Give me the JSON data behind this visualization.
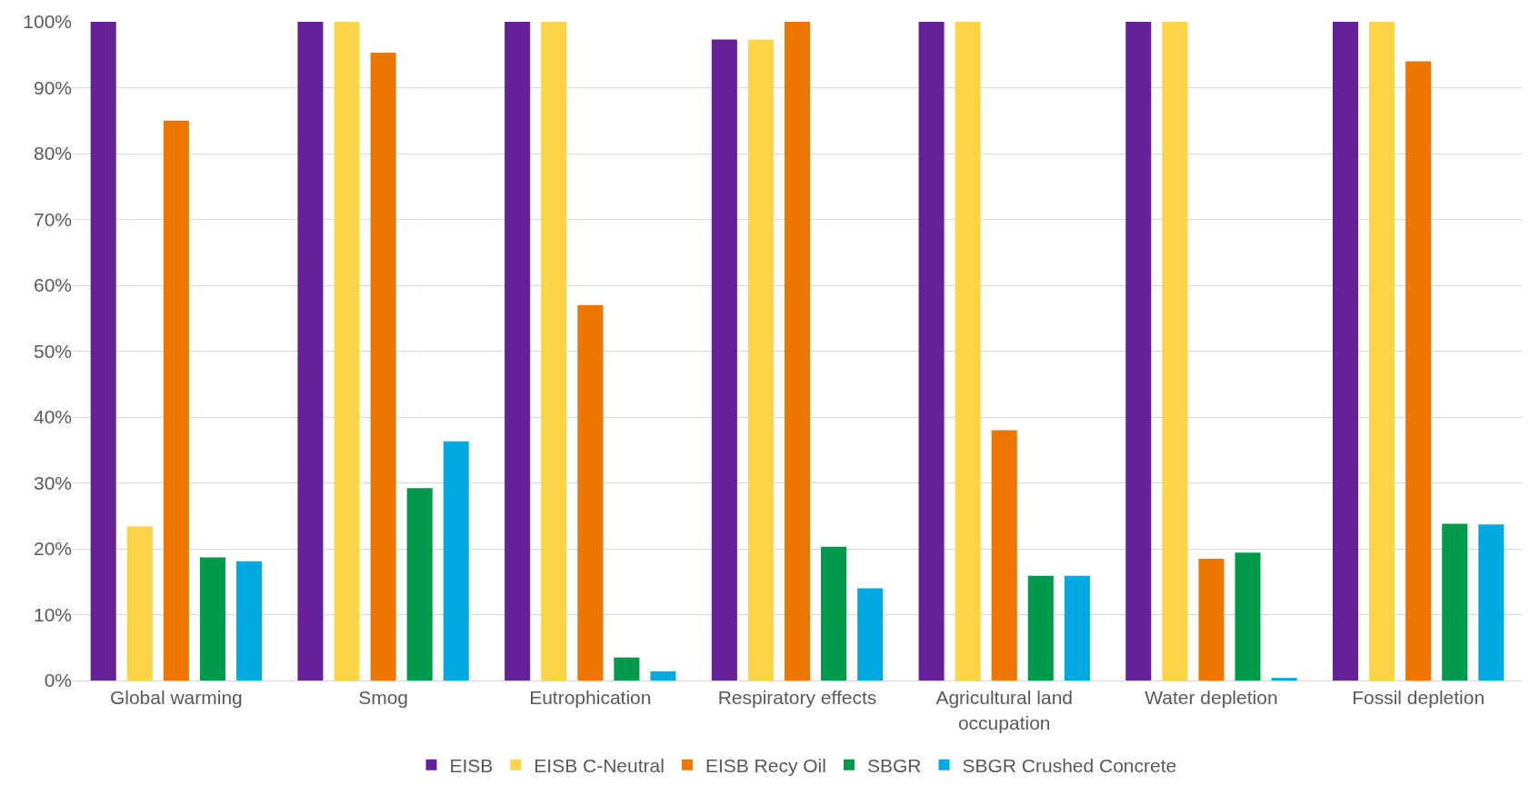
{
  "chart_data": {
    "type": "bar",
    "categories": [
      "Global warming",
      "Smog",
      "Eutrophication",
      "Respiratory effects",
      "Agricultural land occupation",
      "Water depletion",
      "Fossil depletion"
    ],
    "series": [
      {
        "name": "EISB",
        "color": "#662198",
        "values": [
          100,
          100,
          100,
          97.3,
          100,
          100,
          100
        ]
      },
      {
        "name": "EISB C-Neutral",
        "color": "#fdd448",
        "values": [
          23.4,
          100,
          100,
          97.3,
          100,
          100,
          100
        ]
      },
      {
        "name": "EISB Recy Oil",
        "color": "#ed7602",
        "values": [
          85,
          95.3,
          57,
          100,
          38,
          18.5,
          94
        ]
      },
      {
        "name": "SBGR",
        "color": "#009a4c",
        "values": [
          18.7,
          29.2,
          3.5,
          20.3,
          15.9,
          19.4,
          23.8
        ]
      },
      {
        "name": "SBGR Crushed Concrete",
        "color": "#00a9e2",
        "values": [
          18.1,
          36.3,
          1.4,
          14,
          15.9,
          0.4,
          23.7
        ]
      }
    ],
    "ylim": [
      0,
      100
    ],
    "yticks": [
      {
        "value": 0,
        "label": "0%"
      },
      {
        "value": 10,
        "label": "10%"
      },
      {
        "value": 20,
        "label": "20%"
      },
      {
        "value": 30,
        "label": "30%"
      },
      {
        "value": 40,
        "label": "40%"
      },
      {
        "value": 50,
        "label": "50%"
      },
      {
        "value": 60,
        "label": "60%"
      },
      {
        "value": 70,
        "label": "70%"
      },
      {
        "value": 80,
        "label": "80%"
      },
      {
        "value": 90,
        "label": "90%"
      },
      {
        "value": 100,
        "label": "100%"
      }
    ],
    "grid": "y",
    "legend": "bottom"
  }
}
